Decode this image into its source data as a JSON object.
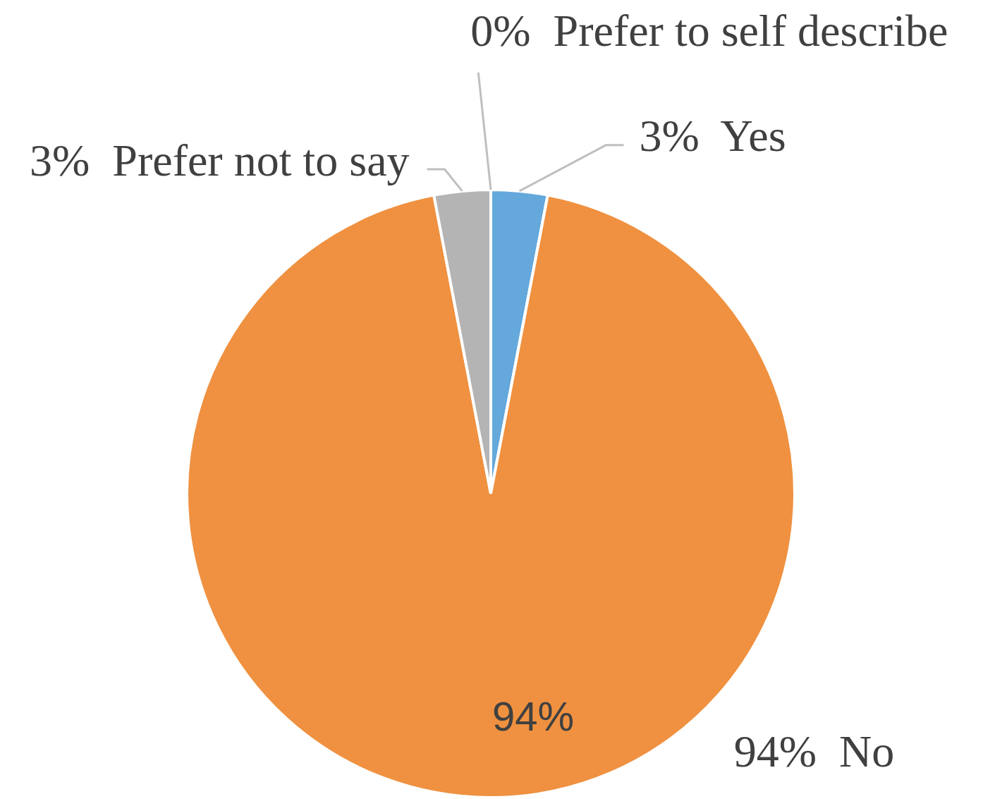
{
  "chart_data": {
    "type": "pie",
    "categories": [
      "Yes",
      "No",
      "Prefer not to say",
      "Prefer to self describe"
    ],
    "values": [
      3,
      94,
      3,
      0
    ],
    "colors": [
      "#64a8dc",
      "#ef9140",
      "#b4b4b4",
      "#ffc000"
    ],
    "value_labels": [
      "3%",
      "94%",
      "3%",
      "0%"
    ],
    "annotations": [
      {
        "text": "94%",
        "x": "No"
      }
    ],
    "legend": false
  }
}
